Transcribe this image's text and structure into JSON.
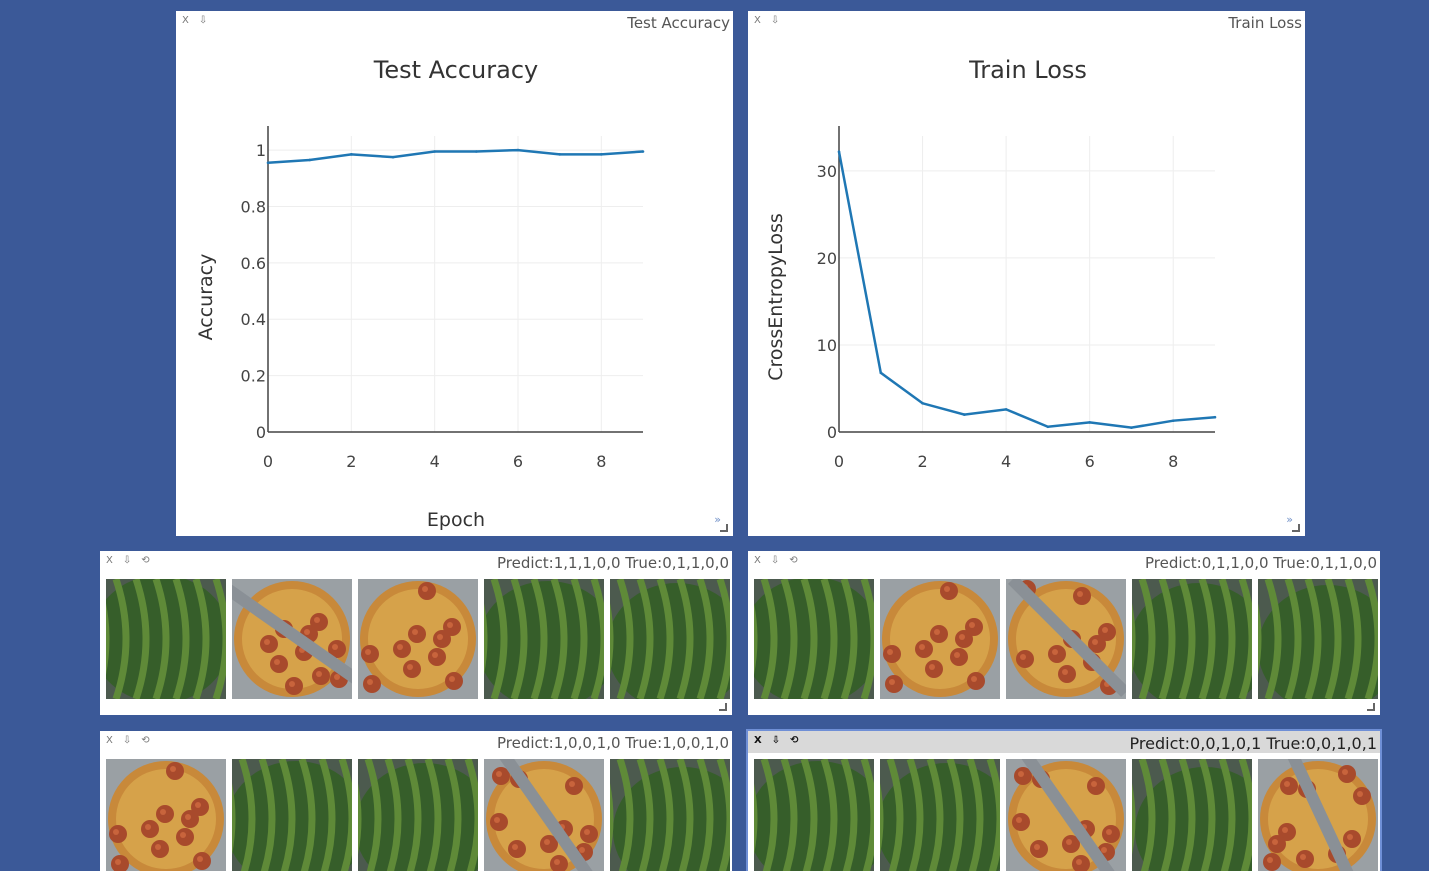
{
  "pane_controls": {
    "close": "X",
    "download": "⇩",
    "reload": "⟲"
  },
  "charts": {
    "accuracy": {
      "window_title": "Test Accuracy",
      "title": "Test Accuracy",
      "xlabel": "Epoch",
      "ylabel": "Accuracy",
      "xticks": [
        "0",
        "2",
        "4",
        "6",
        "8"
      ],
      "yticks": [
        "0",
        "0.2",
        "0.4",
        "0.6",
        "0.8",
        "1"
      ]
    },
    "loss": {
      "window_title": "Train Loss",
      "title": "Train Loss",
      "xlabel": "",
      "ylabel": "CrossEntropyLoss",
      "xticks": [
        "0",
        "2",
        "4",
        "6",
        "8"
      ],
      "yticks": [
        "0",
        "10",
        "20",
        "30"
      ]
    }
  },
  "image_panes": [
    {
      "title": "Predict:1,1,1,0,0 True:0,1,1,0,0",
      "images": [
        "watermelon",
        "pizza",
        "pizza",
        "watermelon",
        "watermelon"
      ]
    },
    {
      "title": "Predict:0,1,1,0,0 True:0,1,1,0,0",
      "images": [
        "watermelon",
        "pizza",
        "pizza",
        "watermelon",
        "watermelon"
      ]
    },
    {
      "title": "Predict:1,0,0,1,0 True:1,0,0,1,0",
      "images": [
        "pizza",
        "watermelon",
        "watermelon",
        "pizza",
        "watermelon"
      ]
    },
    {
      "title": "Predict:0,0,1,0,1 True:0,0,1,0,1",
      "images": [
        "watermelon",
        "watermelon",
        "pizza",
        "watermelon",
        "pizza"
      ]
    }
  ],
  "colors": {
    "background": "#3b5998",
    "line": "#1f77b4"
  },
  "chart_data": [
    {
      "type": "line",
      "title": "Test Accuracy",
      "xlabel": "Epoch",
      "ylabel": "Accuracy",
      "xlim": [
        0,
        9
      ],
      "ylim": [
        0,
        1.05
      ],
      "grid": true,
      "series": [
        {
          "x": [
            0,
            1,
            2,
            3,
            4,
            5,
            6,
            7,
            8,
            9
          ],
          "values": [
            0.955,
            0.965,
            0.985,
            0.975,
            0.995,
            0.995,
            1.0,
            0.985,
            0.985,
            0.995
          ]
        }
      ]
    },
    {
      "type": "line",
      "title": "Train Loss",
      "xlabel": "",
      "ylabel": "CrossEntropyLoss",
      "xlim": [
        0,
        9
      ],
      "ylim": [
        0,
        34
      ],
      "grid": true,
      "series": [
        {
          "x": [
            0,
            1,
            2,
            3,
            4,
            5,
            6,
            7,
            8,
            9
          ],
          "values": [
            32.2,
            6.8,
            3.3,
            2.0,
            2.6,
            0.6,
            1.1,
            0.5,
            1.3,
            1.7
          ]
        }
      ]
    }
  ]
}
